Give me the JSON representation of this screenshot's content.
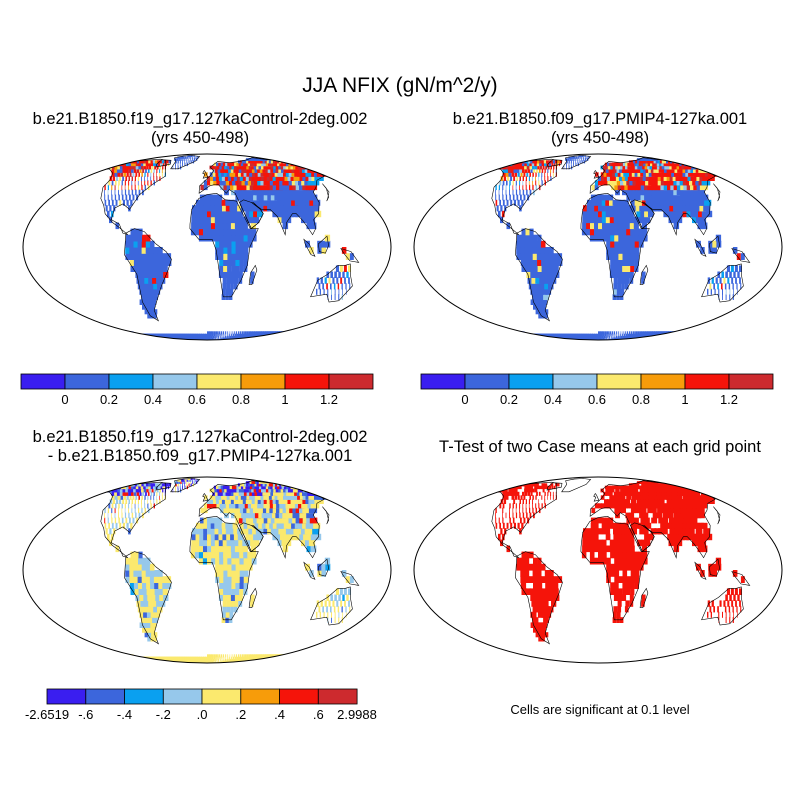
{
  "title": "JJA NFIX (gN/m^2/y)",
  "panels": {
    "top_left": {
      "title_line1": "b.e21.B1850.f19_g17.127kaControl-2deg.002",
      "title_line2": "(yrs 450-498)"
    },
    "top_right": {
      "title_line1": "b.e21.B1850.f09_g17.PMIP4-127ka.001",
      "title_line2": "(yrs 450-498)"
    },
    "bottom_left": {
      "title_line1": "b.e21.B1850.f19_g17.127kaControl-2deg.002",
      "title_line2": "- b.e21.B1850.f09_g17.PMIP4-127ka.001"
    },
    "bottom_right": {
      "title_line1": "T-Test of two Case means at each grid point",
      "note": "Cells are significant at 0.1 level"
    }
  },
  "colorbars": {
    "field": {
      "colors": [
        "#3a1ef0",
        "#3c66dc",
        "#0aa0f0",
        "#96c8eb",
        "#fbe96e",
        "#f79c0a",
        "#f5140a",
        "#cd2a2e"
      ],
      "labels": [
        "0",
        "0.2",
        "0.4",
        "0.6",
        "0.8",
        "1",
        "1.2"
      ]
    },
    "difference": {
      "colors": [
        "#3a1ef0",
        "#3c66dc",
        "#0aa0f0",
        "#96c8eb",
        "#fbe96e",
        "#f79c0a",
        "#f5140a",
        "#cd2a2e"
      ],
      "labels": [
        "-2.6519",
        "-.6",
        "-.4",
        "-.2",
        ".0",
        ".2",
        ".4",
        ".6",
        "2.9988"
      ]
    }
  },
  "colors": {
    "land_background": "#3c66dc",
    "difference_land": "#fbe96e",
    "significance": "#f5140a",
    "high_value": "#f5140a"
  }
}
